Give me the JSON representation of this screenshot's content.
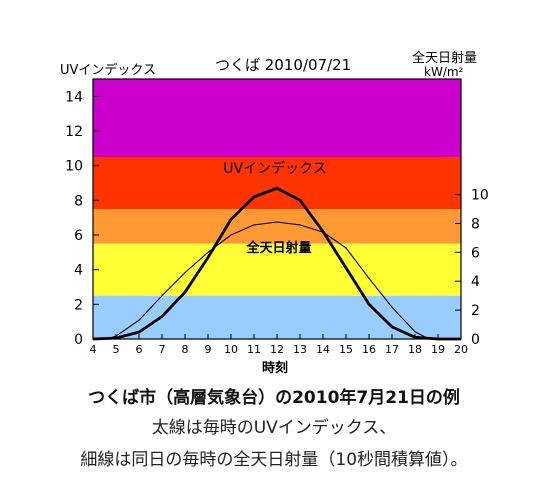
{
  "chart_data": {
    "type": "line",
    "title": "つくば 2010/07/21",
    "left_axis_label": "UVインデックス",
    "right_axis_label_line1": "全天日射量",
    "right_axis_label_line2": "kW/m²",
    "xlabel": "時刻",
    "x": [
      4,
      5,
      6,
      7,
      8,
      9,
      10,
      11,
      12,
      13,
      14,
      15,
      16,
      17,
      18,
      19,
      20
    ],
    "x_ticks": [
      "4",
      "5",
      "6",
      "7",
      "8",
      "9",
      "10",
      "11",
      "12",
      "13",
      "14",
      "15",
      "16",
      "17",
      "18",
      "19",
      "20"
    ],
    "ylim_left": [
      0,
      15
    ],
    "y_ticks_left": [
      "0",
      "2",
      "4",
      "6",
      "8",
      "10",
      "12",
      "14"
    ],
    "ylim_right": [
      0,
      18
    ],
    "y_ticks_right": [
      "0",
      "2",
      "4",
      "6",
      "8",
      "10"
    ],
    "bands": [
      {
        "from": 0,
        "to": 2.5,
        "color": "#99ccff"
      },
      {
        "from": 2.5,
        "to": 5.5,
        "color": "#ffff33"
      },
      {
        "from": 5.5,
        "to": 7.5,
        "color": "#ff9933"
      },
      {
        "from": 7.5,
        "to": 10.5,
        "color": "#ff3300"
      },
      {
        "from": 10.5,
        "to": 15,
        "color": "#cc00cc"
      }
    ],
    "series": [
      {
        "name": "UVインデックス",
        "axis": "left",
        "stroke_width": "thick",
        "x": [
          4,
          5,
          6,
          7,
          8,
          9,
          10,
          11,
          12,
          13,
          14,
          15,
          16,
          17,
          18,
          19,
          20
        ],
        "values": [
          0,
          0.05,
          0.4,
          1.3,
          2.7,
          4.7,
          6.9,
          8.2,
          8.7,
          8.0,
          6.2,
          4.1,
          2.0,
          0.7,
          0.1,
          0,
          0
        ]
      },
      {
        "name": "全天日射量",
        "axis": "right",
        "stroke_width": "thin",
        "x": [
          4.6,
          5,
          6,
          7,
          8,
          9,
          10,
          11,
          12,
          13,
          14,
          15,
          16,
          17,
          18,
          18.6
        ],
        "values": [
          0,
          0.2,
          1.3,
          3.0,
          4.6,
          6.0,
          7.2,
          7.9,
          8.1,
          7.9,
          7.4,
          6.3,
          4.2,
          2.2,
          0.5,
          0
        ]
      }
    ]
  },
  "captions": {
    "line1": "つくば市（高層気象台）の2010年7月21日の例",
    "line2": "太線は毎時のUVインデックス、",
    "line3": "細線は同日の毎時の全天日射量（10秒間積算値）。"
  }
}
